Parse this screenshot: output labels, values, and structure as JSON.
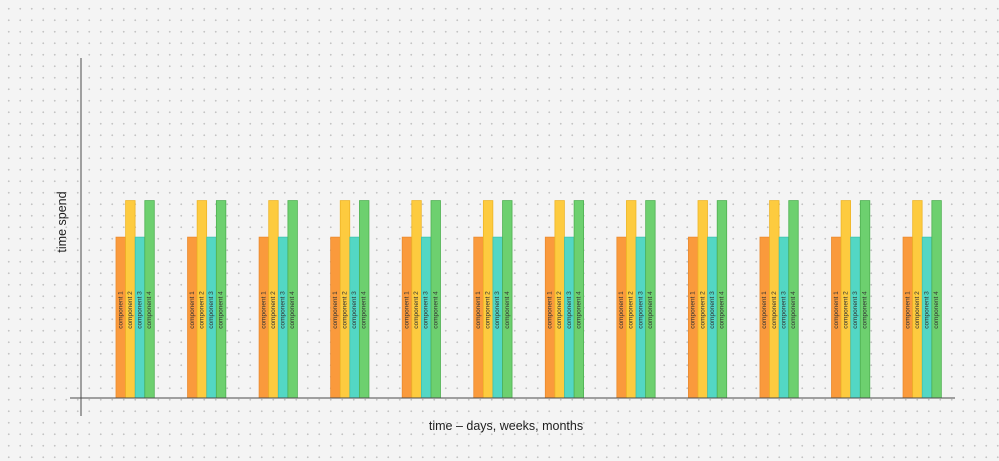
{
  "chart_data": {
    "type": "bar",
    "xlabel": "time – days, weeks, months",
    "ylabel": "time spend",
    "x_tick_labels": "none",
    "y_tick_labels": "none",
    "group_count": 12,
    "series": [
      {
        "name": "component 1",
        "color": "#fa9a3c",
        "border": "#ea8a2f",
        "values": [
          44,
          44,
          44,
          44,
          44,
          44,
          44,
          44,
          44,
          44,
          44,
          44
        ]
      },
      {
        "name": "component 2",
        "color": "#fdcb3f",
        "border": "#eeb527",
        "values": [
          54,
          54,
          54,
          54,
          54,
          54,
          54,
          54,
          54,
          54,
          54,
          54
        ]
      },
      {
        "name": "component 3",
        "color": "#53d7c4",
        "border": "#3fc2ae",
        "values": [
          44,
          44,
          44,
          44,
          44,
          44,
          44,
          44,
          44,
          44,
          44,
          44
        ]
      },
      {
        "name": "component 4",
        "color": "#6dd06f",
        "border": "#4fb052",
        "values": [
          54,
          54,
          54,
          54,
          54,
          54,
          54,
          54,
          54,
          54,
          54,
          54
        ]
      }
    ],
    "ylim": [
      0,
      93
    ],
    "grid": false,
    "legend": "none"
  }
}
